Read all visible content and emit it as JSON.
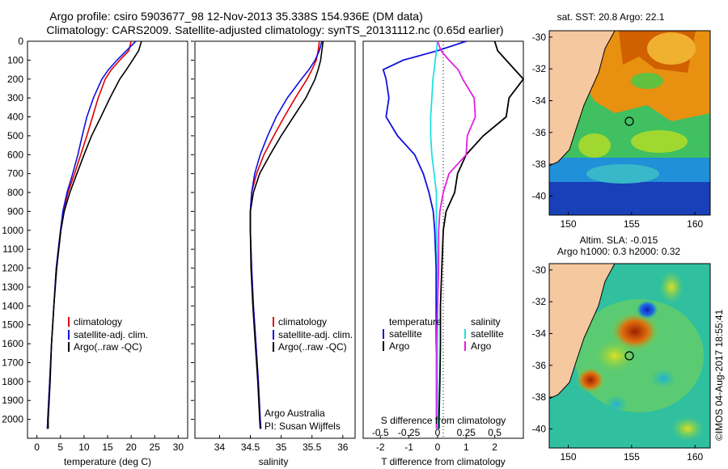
{
  "title": {
    "line1": "Argo profile: csiro 5903677_98 12-Nov-2013 35.338S 154.936E (DM data)",
    "line2": "Climatology: CARS2009. Satellite-adjusted climatology: synTS_20131112.nc (0.65d earlier)"
  },
  "colors": {
    "climatology": "#e00000",
    "satellite": "#1010e0",
    "argo": "#000000",
    "sal_satellite": "#20e0e0",
    "sal_argo": "#e020e0"
  },
  "chart_data": [
    {
      "type": "line",
      "id": "temperature",
      "xlabel": "temperature (deg C)",
      "ylabel": "",
      "xlim": [
        -2,
        32
      ],
      "ylim": [
        2100,
        0
      ],
      "xticks": [
        "0",
        "5",
        "10",
        "15",
        "20",
        "25",
        "30"
      ],
      "yticks": [
        "0",
        "100",
        "200",
        "300",
        "400",
        "500",
        "600",
        "700",
        "800",
        "900",
        "1000",
        "1100",
        "1200",
        "1300",
        "1400",
        "1500",
        "1600",
        "1700",
        "1800",
        "1900",
        "2000"
      ],
      "depth": [
        0,
        50,
        100,
        150,
        200,
        300,
        400,
        500,
        600,
        700,
        800,
        900,
        1000,
        1200,
        1400,
        1600,
        1800,
        2000,
        2050
      ],
      "series": [
        {
          "name": "climatology",
          "values": [
            20,
            19.5,
            17.6,
            15.8,
            14.5,
            13.0,
            11.8,
            10.6,
            9.3,
            8.0,
            6.6,
            5.6,
            5.0,
            4.1,
            3.6,
            3.1,
            2.7,
            2.3,
            2.2
          ]
        },
        {
          "name": "satellite-adj. clim.",
          "values": [
            21,
            19.0,
            17.0,
            15.2,
            13.8,
            12.0,
            10.6,
            9.6,
            8.7,
            7.6,
            6.4,
            5.5,
            5.0,
            4.1,
            3.6,
            3.1,
            2.7,
            2.3,
            2.2
          ]
        },
        {
          "name": "Argo(..raw -QC)",
          "values": [
            22.2,
            21.6,
            20.3,
            19.0,
            17.6,
            15.5,
            13.6,
            11.6,
            10.0,
            8.5,
            7.0,
            5.8,
            5.1,
            4.2,
            3.6,
            3.1,
            2.8,
            2.4,
            2.4
          ]
        }
      ],
      "legend": [
        "climatology",
        "satellite-adj. clim.",
        "Argo(..raw -QC)"
      ],
      "legend_position": "bottom-right"
    },
    {
      "type": "line",
      "id": "salinity",
      "xlabel": "salinity",
      "xlim": [
        33.6,
        36.2
      ],
      "ylim": [
        2100,
        0
      ],
      "xticks": [
        "34",
        "34.5",
        "35",
        "35.5",
        "36"
      ],
      "depth": [
        0,
        50,
        100,
        150,
        200,
        300,
        400,
        500,
        600,
        700,
        800,
        900,
        1000,
        1200,
        1400,
        1600,
        1800,
        2000,
        2050
      ],
      "series": [
        {
          "name": "climatology",
          "values": [
            35.62,
            35.6,
            35.57,
            35.5,
            35.42,
            35.23,
            35.05,
            34.88,
            34.72,
            34.6,
            34.52,
            34.5,
            34.5,
            34.52,
            34.55,
            34.59,
            34.63,
            34.66,
            34.67
          ]
        },
        {
          "name": "satellite-adj. clim.",
          "values": [
            35.66,
            35.62,
            35.55,
            35.45,
            35.33,
            35.1,
            34.92,
            34.78,
            34.66,
            34.57,
            34.52,
            34.5,
            34.5,
            34.52,
            34.55,
            34.59,
            34.63,
            34.66,
            34.67
          ]
        },
        {
          "name": "Argo(..raw -QC)",
          "values": [
            35.68,
            35.66,
            35.64,
            35.6,
            35.55,
            35.4,
            35.2,
            35.0,
            34.82,
            34.65,
            34.55,
            34.5,
            34.5,
            34.51,
            34.54,
            34.58,
            34.62,
            34.65,
            34.66
          ]
        }
      ],
      "legend": [
        "climatology",
        "satellite-adj. clim.",
        "Argo(..raw -QC)"
      ],
      "legend_position": "bottom-right",
      "annotation": [
        "Argo Australia",
        "PI: Susan Wijffels"
      ]
    },
    {
      "type": "line",
      "id": "difference",
      "xlabel_bottom": "T difference from climatology",
      "xlabel_top": "S difference from climatology",
      "t_xlim": [
        -2.6,
        3.0
      ],
      "t_xticks": [
        "-2",
        "-1",
        "0",
        "1",
        "2"
      ],
      "s_xticks": [
        "-0.5",
        "-0.25",
        "0",
        "0.25",
        "0.5"
      ],
      "s_xlim": [
        -0.65,
        0.75
      ],
      "ylim": [
        2100,
        0
      ],
      "depth": [
        0,
        50,
        100,
        150,
        200,
        300,
        400,
        500,
        600,
        700,
        800,
        900,
        1000,
        1200,
        1400,
        1600,
        1800,
        2000,
        2050
      ],
      "series": [
        {
          "name": "temperature satellite",
          "values": [
            1.0,
            0.0,
            -1.2,
            -1.9,
            -1.8,
            -1.7,
            -1.8,
            -1.4,
            -0.8,
            -0.5,
            -0.3,
            -0.15,
            -0.1,
            -0.05,
            -0.05,
            -0.05,
            0.0,
            0.0,
            0.0
          ]
        },
        {
          "name": "temperature Argo",
          "values": [
            2.0,
            2.1,
            2.4,
            2.7,
            3.0,
            2.5,
            2.4,
            1.6,
            1.0,
            0.7,
            0.6,
            0.3,
            0.2,
            0.15,
            0.1,
            0.1,
            0.08,
            0.05,
            0.05
          ]
        },
        {
          "name": "salinity satellite",
          "values": [
            0.0,
            -0.01,
            -0.02,
            -0.03,
            -0.04,
            -0.05,
            -0.06,
            -0.06,
            -0.05,
            -0.03,
            -0.01,
            -0.01,
            -0.01,
            0.0,
            0.0,
            0.0,
            0.0,
            0.0,
            0.0
          ]
        },
        {
          "name": "salinity Argo",
          "values": [
            0.0,
            0.03,
            0.1,
            0.18,
            0.22,
            0.32,
            0.33,
            0.26,
            0.25,
            0.1,
            0.05,
            0.02,
            0.01,
            0.01,
            0.0,
            -0.01,
            -0.01,
            -0.01,
            -0.01
          ]
        }
      ],
      "legend_headers": [
        "temperature",
        "salinity"
      ],
      "legend": [
        "satellite",
        "Argo",
        "satellite",
        "Argo"
      ],
      "legend_position": "bottom-center"
    },
    {
      "type": "heatmap",
      "id": "sst-map",
      "title": "sat. SST: 20.8  Argo: 22.1",
      "xticks": [
        "150",
        "155",
        "160"
      ],
      "yticks": [
        "-30",
        "-32",
        "-34",
        "-36",
        "-38",
        "-40"
      ],
      "xlim": [
        148.5,
        161.2
      ],
      "ylim": [
        -41.2,
        -29.6
      ],
      "marker": {
        "lon": 154.936,
        "lat": -35.338
      }
    },
    {
      "type": "heatmap",
      "id": "sla-map",
      "title_line1": "Altim. SLA: -0.015",
      "title_line2": "Argo h1000: 0.3 h2000: 0.32",
      "xticks": [
        "150",
        "155",
        "160"
      ],
      "yticks": [
        "-30",
        "-32",
        "-34",
        "-36",
        "-38",
        "-40"
      ],
      "xlim": [
        148.5,
        161.2
      ],
      "ylim": [
        -41.2,
        -29.6
      ],
      "marker": {
        "lon": 154.936,
        "lat": -35.338
      }
    }
  ],
  "footer": "©IMOS 04-Aug-2017 18:55:41"
}
